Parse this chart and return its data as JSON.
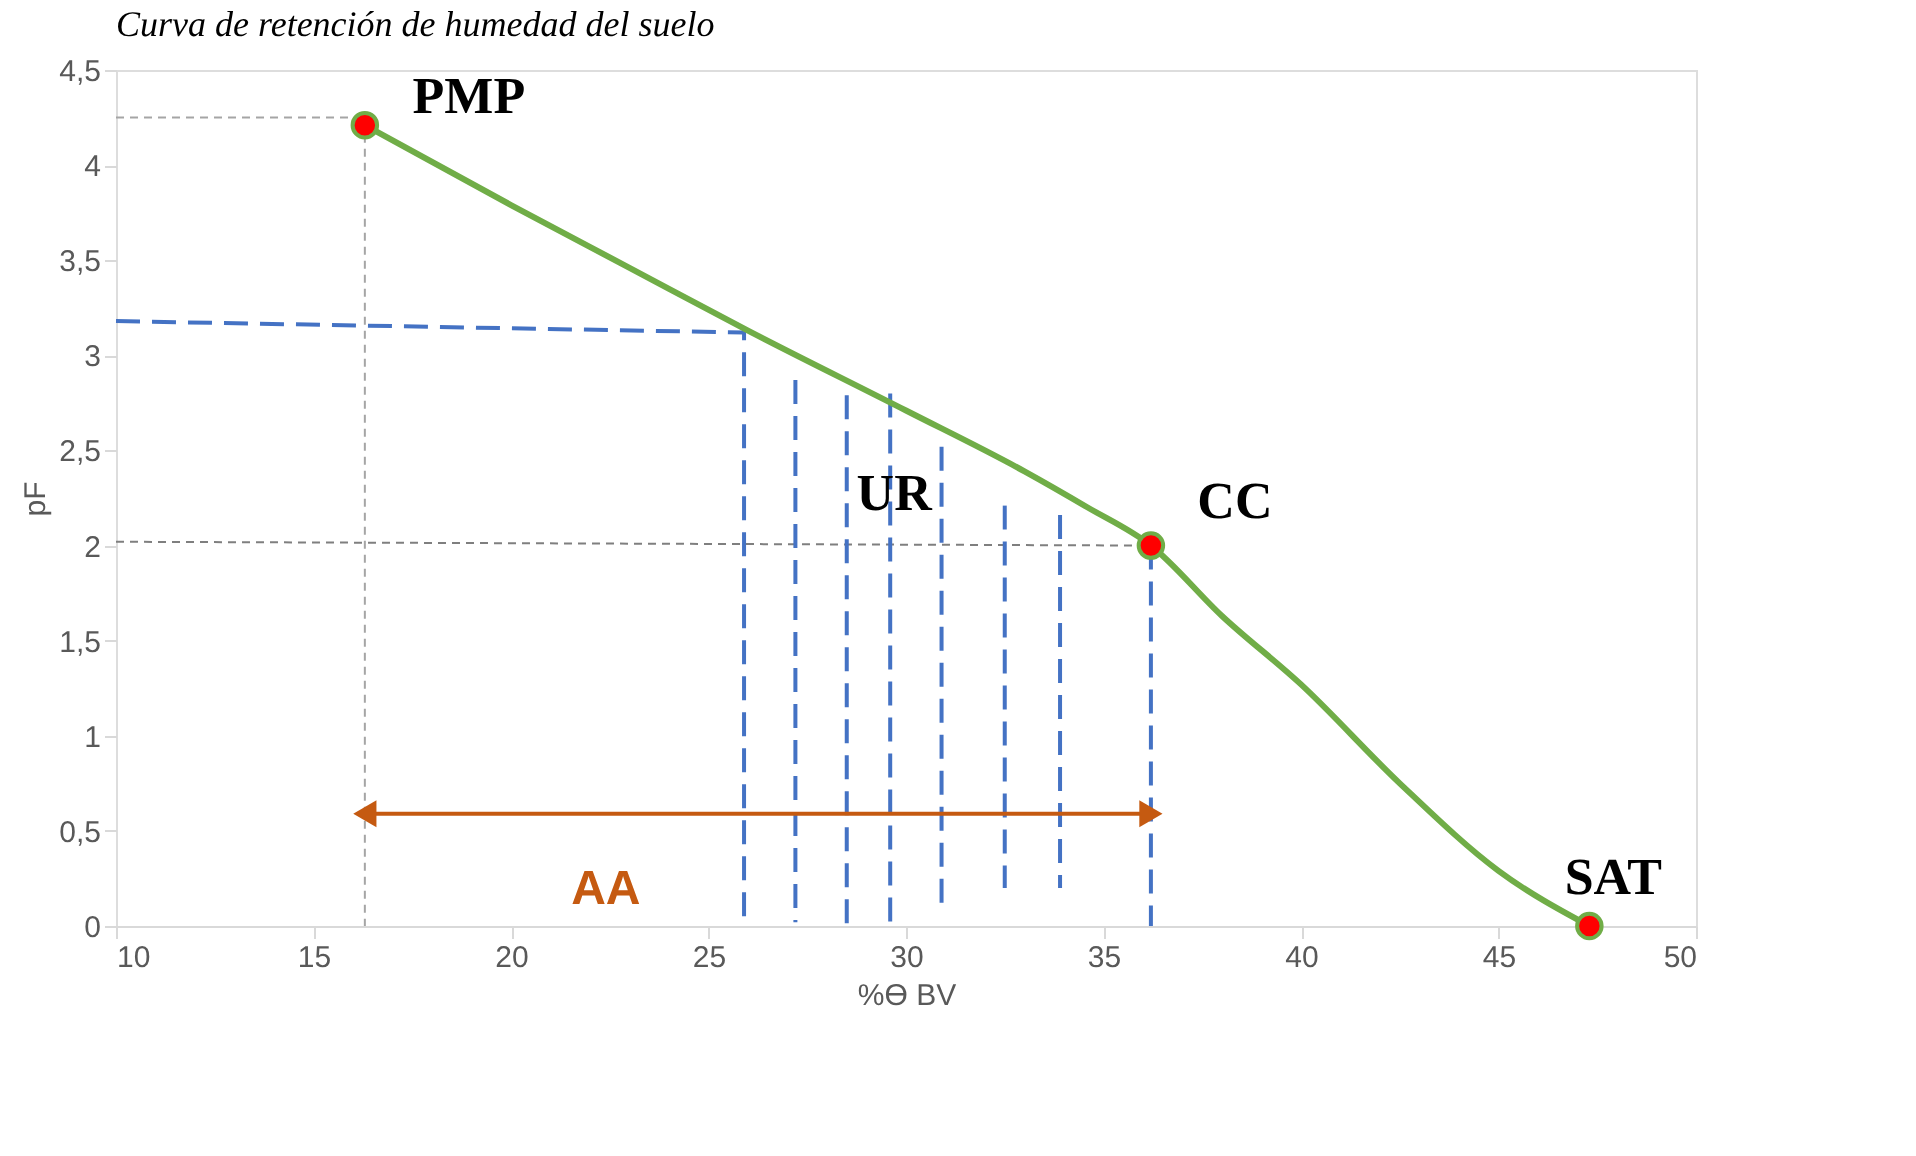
{
  "chart_data": {
    "type": "line",
    "title": "Curva de retención de humedad del suelo",
    "xlabel": "%ϴ BV",
    "ylabel": "pF",
    "xlim": [
      10,
      50
    ],
    "xticks": [
      10,
      15,
      20,
      25,
      30,
      35,
      40,
      45,
      50
    ],
    "ylim": [
      0,
      4.5
    ],
    "yticks": [
      0,
      {
        "value": 0.5,
        "label": "0,5"
      },
      1,
      {
        "value": 1.5,
        "label": "1,5"
      },
      2,
      {
        "value": 2.5,
        "label": "2,5"
      },
      3,
      {
        "value": 3.5,
        "label": "3,5"
      },
      4,
      {
        "value": 4.5,
        "label": "4,5"
      }
    ],
    "grid": false,
    "series": [
      {
        "type": "line",
        "color": "#a5a5a5",
        "line_style": "dotted",
        "x": [
          10,
          16.3,
          16.3
        ],
        "values": [
          4.25,
          4.25,
          0
        ]
      },
      {
        "type": "line",
        "color": "#7f7f7f",
        "line_style": "dotted",
        "x": [
          10,
          36.2
        ],
        "values": [
          2.02,
          2.0
        ]
      },
      {
        "type": "line",
        "color": "#4472c4",
        "line_style": "dashed",
        "x": [
          10,
          25.9,
          25.9
        ],
        "values": [
          3.18,
          3.12,
          0.05
        ]
      },
      {
        "type": "line",
        "color": "#4472c4",
        "line_style": "dashed",
        "x": [
          27.2,
          27.2
        ],
        "values": [
          2.87,
          0.02
        ]
      },
      {
        "type": "line",
        "color": "#4472c4",
        "line_style": "dashed",
        "x": [
          28.5,
          28.5
        ],
        "values": [
          2.79,
          0
        ]
      },
      {
        "type": "line",
        "color": "#4472c4",
        "line_style": "dashed",
        "x": [
          29.6,
          29.6
        ],
        "values": [
          2.8,
          0
        ]
      },
      {
        "type": "line",
        "color": "#4472c4",
        "line_style": "dashed",
        "x": [
          30.9,
          30.9
        ],
        "values": [
          2.52,
          0.12
        ]
      },
      {
        "type": "line",
        "color": "#4472c4",
        "line_style": "dashed",
        "x": [
          32.5,
          32.5
        ],
        "values": [
          2.21,
          0.2
        ]
      },
      {
        "type": "line",
        "color": "#4472c4",
        "line_style": "dashed",
        "x": [
          33.9,
          33.9
        ],
        "values": [
          2.16,
          0.2
        ]
      },
      {
        "type": "line",
        "color": "#4472c4",
        "line_style": "dashed",
        "x": [
          36.2,
          36.2
        ],
        "values": [
          2.0,
          0
        ]
      },
      {
        "type": "line",
        "color": "#c55a11",
        "line_style": "solid",
        "marker": "triangle",
        "x": [
          16.3,
          36.2
        ],
        "values": [
          0.59,
          0.59
        ]
      },
      {
        "color": "#70ad47",
        "line_style": "solid",
        "x": [
          16.3,
          20,
          23,
          26,
          30,
          33,
          34.6,
          36.2,
          38,
          40,
          42.5,
          45,
          47.3
        ],
        "values": [
          4.21,
          3.79,
          3.46,
          3.13,
          2.71,
          2.39,
          2.2,
          2.0,
          1.63,
          1.27,
          0.75,
          0.29,
          0
        ]
      },
      {
        "type": "scatter",
        "colors": [
          "#ff0000",
          "#ff0000",
          "#ff0000"
        ],
        "marker": "circle",
        "x": [
          16.3,
          36.2,
          47.3
        ],
        "values": [
          4.21,
          2.0,
          0
        ]
      }
    ],
    "annotations": [
      {
        "text": "PMP",
        "x": 16.3,
        "y": 4.21
      },
      {
        "text": "UR",
        "x": 29.7,
        "y": 2.27
      },
      {
        "text": "CC",
        "x": 36.2,
        "y": 2.0
      },
      {
        "text": "SAT",
        "x": 47.3,
        "y": 0
      },
      {
        "text": "AA",
        "x": 22.4,
        "y": 0.59
      }
    ]
  }
}
